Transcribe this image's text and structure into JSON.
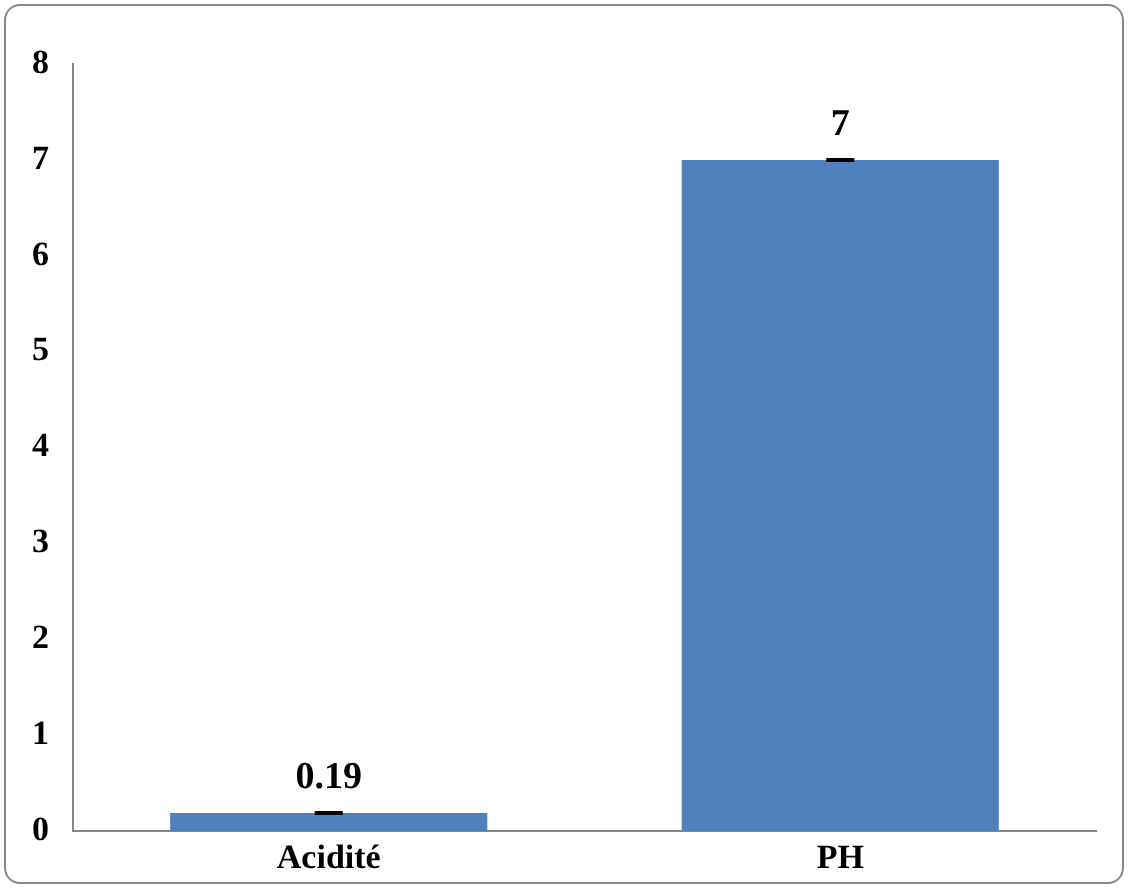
{
  "chart_data": {
    "type": "bar",
    "categories": [
      "Acidité",
      "PH"
    ],
    "values": [
      0.19,
      7
    ],
    "errors": [
      0,
      0
    ],
    "color": "#4f81bd",
    "ylim": [
      0,
      8
    ],
    "yticks": [
      0,
      1,
      2,
      3,
      4,
      5,
      6,
      7,
      8
    ],
    "grid": false,
    "legend": false,
    "data_labels": true
  }
}
